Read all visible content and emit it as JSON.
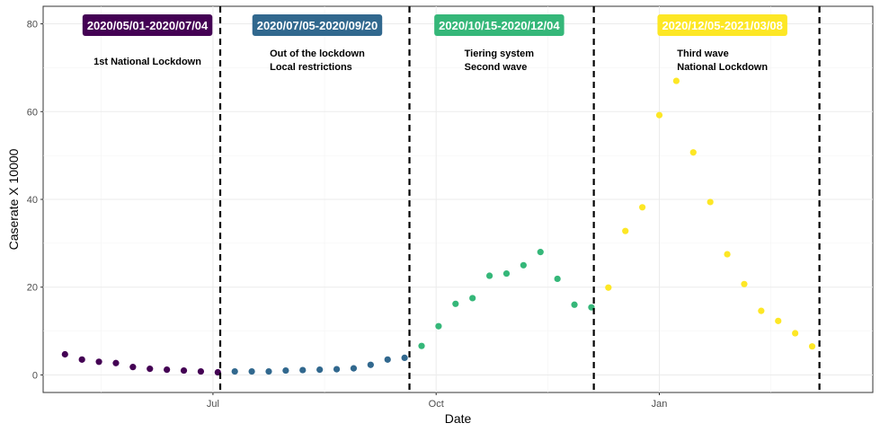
{
  "chart_data": {
    "type": "scatter",
    "xlabel": "Date",
    "ylabel": "Caserate X 10000",
    "ylim": [
      -4,
      84
    ],
    "xlim": [
      "2020-04-22",
      "2021-03-30"
    ],
    "x_ticks": [
      {
        "date": "2020-07-01",
        "label": "Jul"
      },
      {
        "date": "2020-10-01",
        "label": "Oct"
      },
      {
        "date": "2021-01-01",
        "label": "Jan"
      }
    ],
    "y_ticks": [
      0,
      20,
      40,
      60,
      80
    ],
    "grid": true,
    "vlines": [
      "2020-07-04",
      "2020-09-20",
      "2020-12-05",
      "2021-03-08"
    ],
    "periods": [
      {
        "label": "2020/05/01-2020/07/04",
        "color": "#440154",
        "center": "2020-06-04",
        "annotation": [
          "1st National Lockdown"
        ]
      },
      {
        "label": "2020/07/05-2020/09/20",
        "color": "#31688e",
        "center": "2020-08-13",
        "annotation": [
          "Out of the lockdown",
          "Local restrictions"
        ]
      },
      {
        "label": "2020/10/15-2020/12/04",
        "color": "#35b779",
        "center": "2020-10-27",
        "annotation": [
          "Tiering system",
          "Second wave"
        ]
      },
      {
        "label": "2020/12/05-2021/03/08",
        "color": "#fde725",
        "center": "2021-01-27",
        "annotation": [
          "Third wave",
          "National Lockdown"
        ]
      }
    ],
    "series": [
      {
        "color": "#440154",
        "points": [
          [
            "2020-05-01",
            4.7
          ],
          [
            "2020-05-08",
            3.5
          ],
          [
            "2020-05-15",
            3.0
          ],
          [
            "2020-05-22",
            2.7
          ],
          [
            "2020-05-29",
            1.8
          ],
          [
            "2020-06-05",
            1.4
          ],
          [
            "2020-06-12",
            1.2
          ],
          [
            "2020-06-19",
            1.0
          ],
          [
            "2020-06-26",
            0.8
          ],
          [
            "2020-07-03",
            0.6
          ]
        ]
      },
      {
        "color": "#31688e",
        "points": [
          [
            "2020-07-10",
            0.8
          ],
          [
            "2020-07-17",
            0.8
          ],
          [
            "2020-07-24",
            0.8
          ],
          [
            "2020-07-31",
            1.0
          ],
          [
            "2020-08-07",
            1.1
          ],
          [
            "2020-08-14",
            1.2
          ],
          [
            "2020-08-21",
            1.3
          ],
          [
            "2020-08-28",
            1.5
          ],
          [
            "2020-09-04",
            2.3
          ],
          [
            "2020-09-11",
            3.5
          ],
          [
            "2020-09-18",
            3.9
          ]
        ]
      },
      {
        "color": "#35b779",
        "points": [
          [
            "2020-09-25",
            6.6
          ],
          [
            "2020-10-02",
            11.1
          ],
          [
            "2020-10-09",
            16.2
          ],
          [
            "2020-10-16",
            17.5
          ],
          [
            "2020-10-23",
            22.6
          ],
          [
            "2020-10-30",
            23.1
          ],
          [
            "2020-11-06",
            25.0
          ],
          [
            "2020-11-13",
            28.0
          ],
          [
            "2020-11-20",
            21.9
          ],
          [
            "2020-11-27",
            16.0
          ],
          [
            "2020-12-04",
            15.4
          ]
        ]
      },
      {
        "color": "#fde725",
        "points": [
          [
            "2020-12-11",
            19.9
          ],
          [
            "2020-12-18",
            32.8
          ],
          [
            "2020-12-25",
            38.2
          ],
          [
            "2021-01-01",
            59.2
          ],
          [
            "2021-01-08",
            67.0
          ],
          [
            "2021-01-15",
            50.7
          ],
          [
            "2021-01-22",
            39.4
          ],
          [
            "2021-01-29",
            27.5
          ],
          [
            "2021-02-05",
            20.7
          ],
          [
            "2021-02-12",
            14.6
          ],
          [
            "2021-02-19",
            12.3
          ],
          [
            "2021-02-26",
            9.5
          ],
          [
            "2021-03-05",
            6.5
          ]
        ]
      }
    ]
  }
}
